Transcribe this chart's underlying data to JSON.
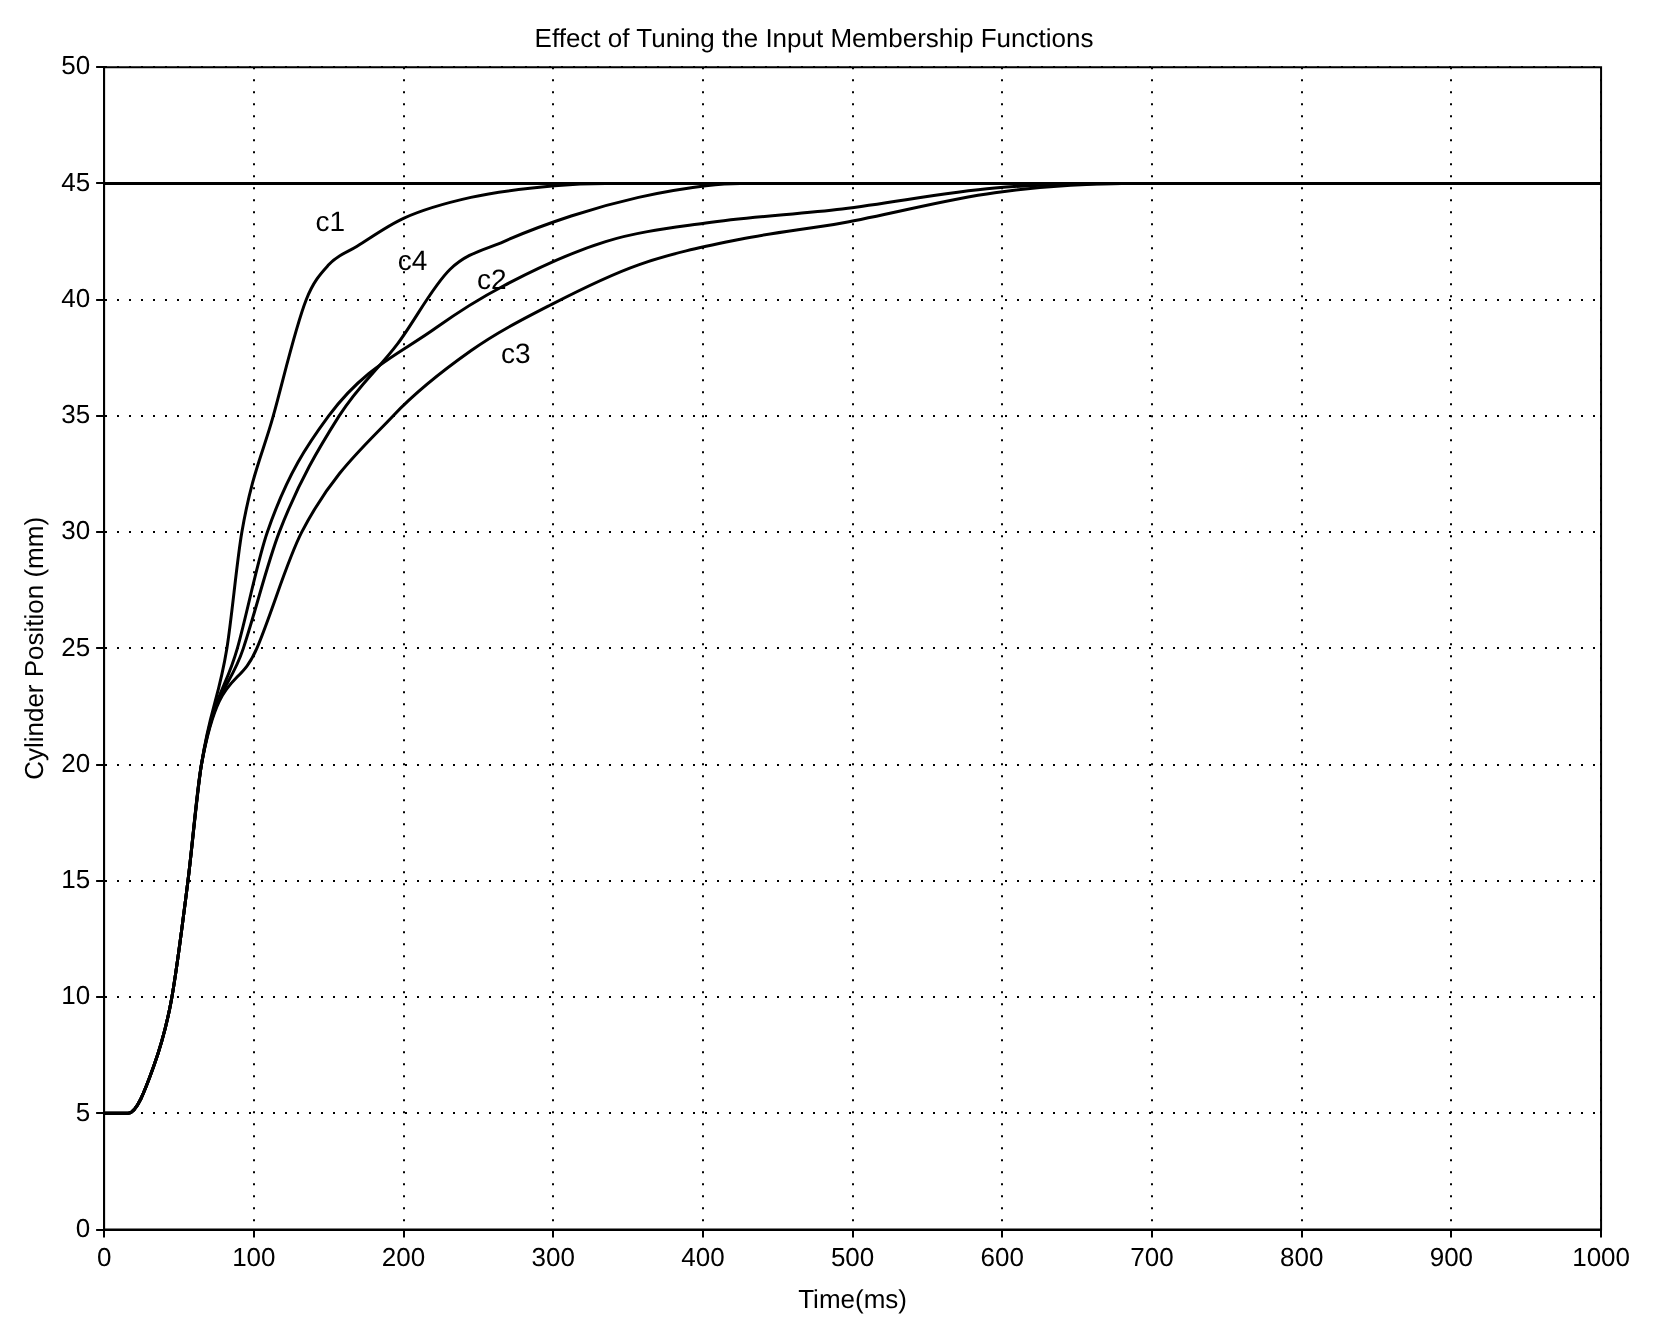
{
  "chart_data": {
    "type": "line",
    "title": "Effect of Tuning the Input Membership Functions",
    "xlabel": "Time(ms)",
    "ylabel": "Cylinder Position (mm)",
    "xlim": [
      0,
      1000
    ],
    "xticks": [
      0,
      100,
      200,
      300,
      400,
      500,
      600,
      700,
      800,
      900,
      1000
    ],
    "ylim": [
      0,
      50
    ],
    "yticks": [
      0,
      5,
      10,
      15,
      20,
      25,
      30,
      35,
      40,
      45,
      50
    ],
    "grid": true,
    "line_style": "solid",
    "marker": "none",
    "legend": false,
    "ref_lines": [
      {
        "axis": "y",
        "value": 45,
        "color": "#000000",
        "line_style": "solid"
      }
    ],
    "series": [
      {
        "name": "c1",
        "color": "#000000",
        "x": [
          0,
          16,
          33,
          45,
          56,
          65,
          82,
          92,
          113,
          135,
          150,
          169,
          200,
          245,
          301,
          335,
          1000
        ],
        "values": [
          5,
          5,
          7,
          9.9,
          15,
          20,
          25,
          30,
          35,
          40,
          41.5,
          42.3,
          43.5,
          44.4,
          44.9,
          45,
          45
        ]
      },
      {
        "name": "c2",
        "color": "#000000",
        "x": [
          0,
          16,
          33,
          45,
          56,
          65,
          89,
          109,
          150,
          222,
          267,
          335,
          402,
          493,
          595,
          680,
          1000
        ],
        "values": [
          5,
          5,
          7,
          9.9,
          15,
          20,
          25,
          30,
          35,
          38.8,
          40.6,
          42.5,
          43.3,
          43.9,
          44.8,
          45,
          45
        ]
      },
      {
        "name": "c3",
        "color": "#000000",
        "x": [
          0,
          16,
          33,
          45,
          56,
          65,
          102,
          132,
          193,
          245,
          299,
          357,
          425,
          493,
          595,
          680,
          1000
        ],
        "values": [
          5,
          5,
          7,
          9.9,
          15,
          20,
          25,
          30,
          35,
          37.8,
          39.8,
          41.5,
          42.6,
          43.3,
          44.6,
          45,
          45
        ]
      },
      {
        "name": "c4",
        "color": "#000000",
        "x": [
          0,
          16,
          33,
          45,
          56,
          65,
          93,
          117,
          157,
          196,
          231,
          267,
          312,
          357,
          402,
          425,
          1000
        ],
        "values": [
          5,
          5,
          7,
          9.9,
          15,
          20,
          25,
          30,
          35,
          38.1,
          41.3,
          42.5,
          43.6,
          44.4,
          44.9,
          45,
          45
        ]
      }
    ]
  }
}
